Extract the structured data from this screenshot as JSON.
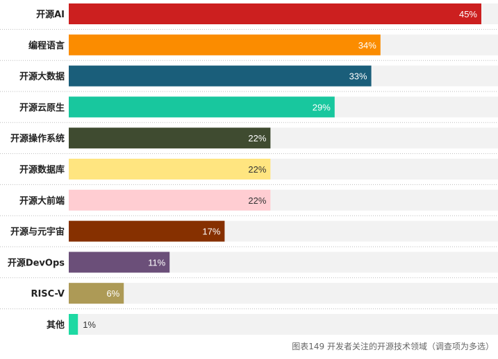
{
  "chart_data": {
    "type": "bar",
    "orientation": "horizontal",
    "categories": [
      "开源AI",
      "编程语言",
      "开源大数据",
      "开源云原生",
      "开源操作系统",
      "开源数据库",
      "开源大前端",
      "开源与元宇宙",
      "开源DevOps",
      "RISC-V",
      "其他"
    ],
    "values": [
      45,
      34,
      33,
      29,
      22,
      22,
      22,
      17,
      11,
      6,
      1
    ],
    "value_labels": [
      "45%",
      "34%",
      "33%",
      "29%",
      "22%",
      "22%",
      "22%",
      "17%",
      "11%",
      "6%",
      "1%"
    ],
    "unit": "%",
    "xlim": [
      0,
      45
    ],
    "grid": false,
    "legend": "none",
    "colors": [
      "#cc1f1f",
      "#fb8c00",
      "#1a5e7a",
      "#18c79e",
      "#3f4b30",
      "#ffe580",
      "#ffcdd2",
      "#863000",
      "#6b4f79",
      "#ad9a56",
      "#1ed9a3"
    ],
    "label_colors": [
      "#ffffff",
      "#ffffff",
      "#ffffff",
      "#ffffff",
      "#ffffff",
      "#333333",
      "#333333",
      "#ffffff",
      "#ffffff",
      "#ffffff",
      "#333333"
    ],
    "track_color": "#f2f2f2",
    "divider_color": "#bbbbbb",
    "caption": "图表149 开发者关注的开源技术领域（调查项为多选）"
  }
}
